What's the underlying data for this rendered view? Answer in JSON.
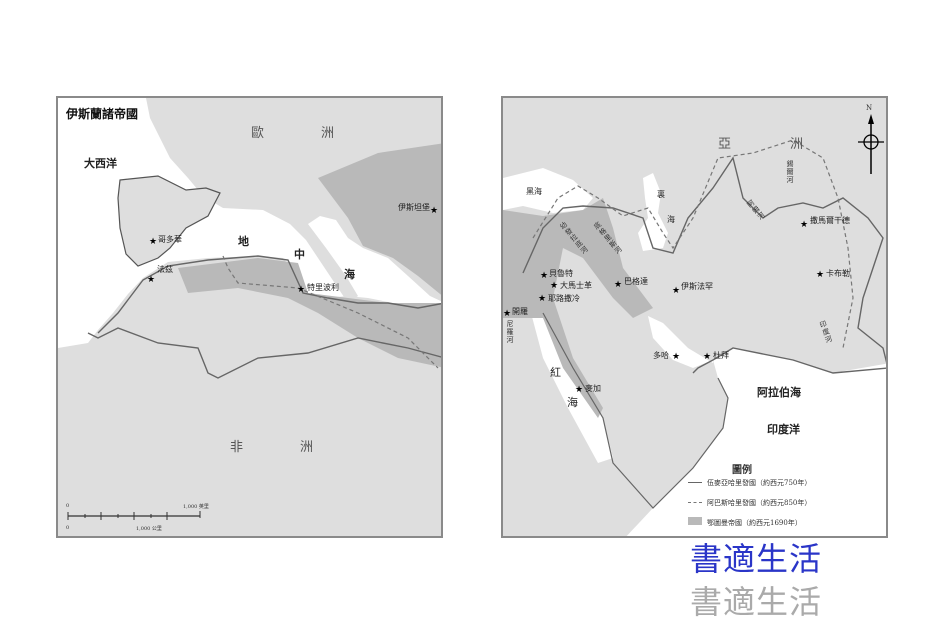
{
  "left_map": {
    "title": "伊斯蘭諸帝國",
    "labels": {
      "europe_1": "歐",
      "europe_2": "洲",
      "atlantic": "大西洋",
      "med_1": "地",
      "med_2": "中",
      "med_3": "海",
      "africa_1": "非",
      "africa_2": "洲"
    },
    "cities": {
      "istanbul": "伊斯坦堡",
      "cordoba": "哥多華",
      "fez": "法茲",
      "tripoli": "特里波利"
    },
    "scale": {
      "zero_top": "0",
      "zero_bottom": "0",
      "miles": "1,000 英里",
      "km": "1,000 公里"
    }
  },
  "right_map": {
    "compass": "N",
    "labels": {
      "asia_1": "亞",
      "asia_2": "洲",
      "black_sea": "黑海",
      "caspian_1": "裏",
      "caspian_2": "海",
      "red_1": "紅",
      "red_2": "海",
      "arabian_sea": "阿拉伯海",
      "indian_ocean": "印度洋"
    },
    "rivers": {
      "syr": "錫爾河",
      "amu": "阿姆河",
      "tigris": "底格里斯河",
      "euphrates": "幼發拉底河",
      "nile": "尼羅河",
      "indus": "印度河"
    },
    "cities": {
      "beirut": "貝魯特",
      "damascus": "大馬士革",
      "jerusalem": "耶路撒冷",
      "baghdad": "巴格達",
      "isfahan": "伊斯法罕",
      "samarkand": "撒馬爾干德",
      "kabul": "卡布勒",
      "cairo": "開羅",
      "mecca": "麥加",
      "doha": "多哈",
      "dubai": "杜拜"
    },
    "legend": {
      "title": "圖例",
      "items": [
        {
          "label": "伍麥亞哈里發國（約西元750年）",
          "style": "solid"
        },
        {
          "label": "阿巴斯哈里發國（約西元850年）",
          "style": "dashed"
        },
        {
          "label": "鄂圖曼帝國（約西元1690年）",
          "style": "shaded"
        }
      ]
    }
  },
  "watermark": "書適生活",
  "colors": {
    "land": "#dedede",
    "empire_shade": "#b9b9b9",
    "sea": "#ffffff",
    "border": "#666666",
    "watermark_blue": "#2a35c8"
  }
}
